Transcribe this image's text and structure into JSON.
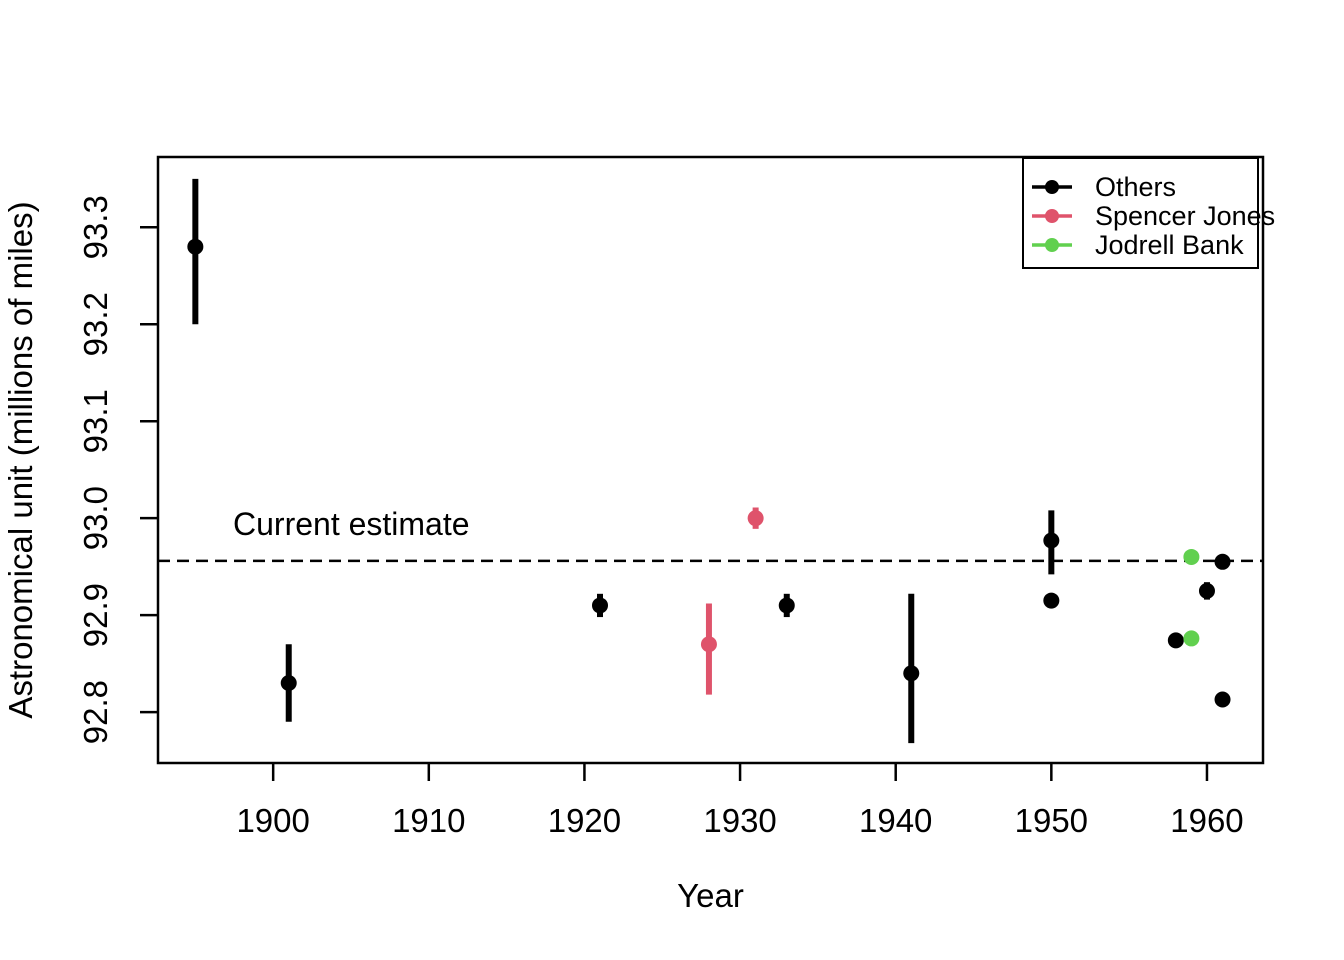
{
  "chart_data": {
    "type": "scatter",
    "title": "",
    "xlabel": "Year",
    "ylabel": "Astronomical unit (millions of miles)",
    "x_tick_labels": [
      "1900",
      "1910",
      "1920",
      "1930",
      "1940",
      "1950",
      "1960"
    ],
    "y_tick_labels": [
      "92.8",
      "92.9",
      "93.0",
      "93.1",
      "93.2",
      "93.3"
    ],
    "xlim": [
      1892.6,
      1963.6
    ],
    "ylim": [
      92.7475,
      93.3725
    ],
    "grid": false,
    "annotation": {
      "label": "Current estimate",
      "value": 92.956,
      "style": "dashed-horizontal-line",
      "color": "#000000"
    },
    "legend": {
      "position": "top-right"
    },
    "series": [
      {
        "name": "Others",
        "color": "#000000",
        "points": [
          {
            "year": 1895,
            "value": 93.28,
            "lo": 93.2,
            "hi": 93.35
          },
          {
            "year": 1901,
            "value": 92.83,
            "lo": 92.79,
            "hi": 92.87
          },
          {
            "year": 1921,
            "value": 92.91,
            "lo": 92.898,
            "hi": 92.922
          },
          {
            "year": 1933,
            "value": 92.91,
            "lo": 92.898,
            "hi": 92.922
          },
          {
            "year": 1941,
            "value": 92.84,
            "lo": 92.768,
            "hi": 92.922
          },
          {
            "year": 1950,
            "value": 92.977,
            "lo": 92.942,
            "hi": 93.008
          },
          {
            "year": 1950,
            "value": 92.915
          },
          {
            "year": 1958,
            "value": 92.874
          },
          {
            "year": 1960,
            "value": 92.925,
            "lo": 92.916,
            "hi": 92.934
          },
          {
            "year": 1961,
            "value": 92.955
          },
          {
            "year": 1961,
            "value": 92.813
          }
        ]
      },
      {
        "name": "Spencer Jones",
        "color": "#DF536B",
        "points": [
          {
            "year": 1928,
            "value": 92.87,
            "lo": 92.818,
            "hi": 92.912
          },
          {
            "year": 1931,
            "value": 93.0,
            "lo": 92.989,
            "hi": 93.011
          }
        ]
      },
      {
        "name": "Jodrell Bank",
        "color": "#61D04F",
        "points": [
          {
            "year": 1959,
            "value": 92.96
          },
          {
            "year": 1959,
            "value": 92.876
          }
        ]
      }
    ]
  }
}
